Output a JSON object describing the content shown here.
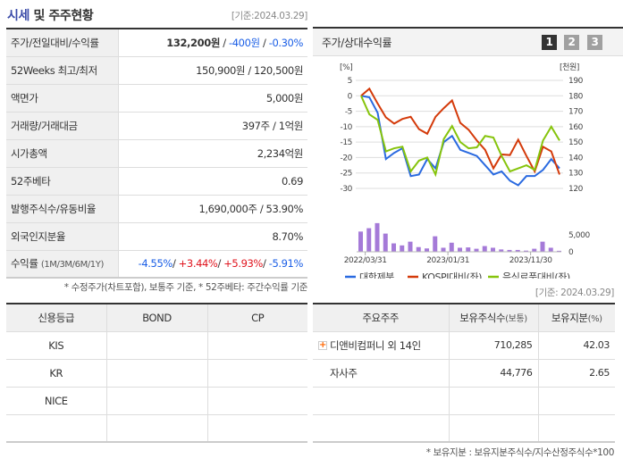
{
  "header": {
    "title_highlight": "시세",
    "title_rest": " 및 주주현황",
    "base_date": "[기준:2024.03.29]"
  },
  "info": [
    {
      "label": "주가/전일대비/수익률",
      "price": "132,200원",
      "sep1": " / ",
      "change": "-400원",
      "sep2": " / ",
      "rate": "-0.30%"
    },
    {
      "label": "52Weeks 최고/최저",
      "value": "150,900원 / 120,500원"
    },
    {
      "label": "액면가",
      "value": "5,000원"
    },
    {
      "label": "거래량/거래대금",
      "value": "397주 / 1억원"
    },
    {
      "label": "시가총액",
      "value": "2,234억원"
    },
    {
      "label": "52주베타",
      "value": "0.69"
    },
    {
      "label": "발행주식수/유동비율",
      "value": "1,690,000주 / 53.90%"
    },
    {
      "label": "외국인지분율",
      "value": "8.70%"
    },
    {
      "label": "수익률",
      "label_sub": "(1M/3M/6M/1Y)",
      "r1": "-4.55%",
      "r2": "+3.44%",
      "r3": "+5.93%",
      "r4": "-5.91%",
      "slash": "/ "
    }
  ],
  "note_info": "* 수정주가(차트포함), 보통주 기준, * 52주베타: 주간수익률 기준",
  "chart_panel": {
    "title": "주가/상대수익률",
    "pages": [
      "1",
      "2",
      "3"
    ],
    "active_page": "1",
    "colors": {
      "active": "#333333",
      "inactive": "#a0a0a0"
    }
  },
  "chart_data": {
    "type": "line",
    "left_unit": "[%]",
    "right_unit": "[천원]",
    "left_ticks": [
      5,
      0,
      -5,
      -10,
      -15,
      -20,
      -25,
      -30
    ],
    "right_ticks": [
      190,
      180,
      170,
      160,
      150,
      140,
      130,
      120
    ],
    "ylim_left": [
      -30,
      5
    ],
    "ylim_right": [
      120,
      190
    ],
    "volume_ticks": [
      "5,000",
      "0"
    ],
    "volume_tick_values": [
      5000,
      0
    ],
    "x_labels": [
      "2022/03/31",
      "2023/01/31",
      "2023/11/30"
    ],
    "series": [
      {
        "name": "대한제분",
        "color": "#2a6ae0",
        "values": [
          0,
          -0.5,
          -5.5,
          -20.5,
          -18.5,
          -17,
          -26,
          -25.5,
          -20.5,
          -23.5,
          -15,
          -13,
          -17.5,
          -18.5,
          -19.5,
          -22.5,
          -25.5,
          -24.5,
          -27.5,
          -29,
          -26,
          -26,
          -24,
          -20.5,
          -23.5
        ]
      },
      {
        "name": "KOSPI대비(좌)",
        "color": "#d43a0a",
        "values": [
          0,
          2.3,
          -2.5,
          -7,
          -9,
          -7.5,
          -6.8,
          -10.8,
          -12.3,
          -6.8,
          -4,
          -1.5,
          -8.8,
          -11,
          -14.5,
          -17.5,
          -23.5,
          -19,
          -19.2,
          -14.2,
          -19.5,
          -24.5,
          -16.5,
          -18,
          -25.5
        ]
      },
      {
        "name": "음식료품대비(좌)",
        "color": "#86c40c",
        "values": [
          0,
          -6,
          -7.8,
          -18,
          -17,
          -16.5,
          -24.5,
          -21,
          -20,
          -25.5,
          -14,
          -9.8,
          -15,
          -17,
          -16.7,
          -13,
          -13.5,
          -19.5,
          -24.5,
          -23.5,
          -22.5,
          -24,
          -14.5,
          -10,
          -14.5
        ]
      }
    ],
    "volume": {
      "name": "거래량",
      "color": "#a57ad8",
      "values": [
        6000,
        7000,
        8500,
        5400,
        2500,
        1900,
        3000,
        1400,
        1000,
        4600,
        1200,
        2700,
        1200,
        1300,
        900,
        1700,
        1200,
        700,
        550,
        550,
        350,
        900,
        3000,
        1200,
        300
      ]
    }
  },
  "note_date": "[기준: 2024.03.29]",
  "credit": {
    "headers": [
      "신용등급",
      "BOND",
      "CP"
    ],
    "rows": [
      [
        "KIS",
        "",
        ""
      ],
      [
        "KR",
        "",
        ""
      ],
      [
        "NICE",
        "",
        ""
      ],
      [
        "",
        "",
        ""
      ]
    ]
  },
  "holders": {
    "headers": [
      "주요주주",
      "보유주식수",
      "(보통)",
      "보유지분",
      "(%)"
    ],
    "rows": [
      {
        "name": "디앤비컴퍼니 외 14인",
        "expand": true,
        "shares": "710,285",
        "pct": "42.03"
      },
      {
        "name": "자사주",
        "expand": false,
        "shares": "44,776",
        "pct": "2.65"
      },
      {
        "name": "",
        "shares": "",
        "pct": ""
      },
      {
        "name": "",
        "shares": "",
        "pct": ""
      }
    ]
  },
  "note_holders": "* 보유지분 : 보유지분주식수/지수산정주식수*100"
}
